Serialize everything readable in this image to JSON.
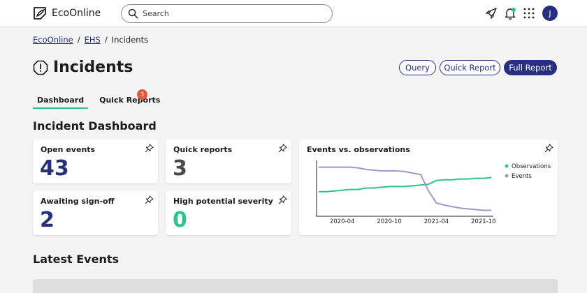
{
  "brand": {
    "name": "EcoOnline"
  },
  "search": {
    "placeholder": "Search"
  },
  "header": {
    "avatar_initial": "J"
  },
  "breadcrumb": {
    "items": [
      "EcoOnline",
      "EHS",
      "Incidents"
    ],
    "separator": "/"
  },
  "page": {
    "title": "Incidents"
  },
  "actions": {
    "query": "Query",
    "quick_report": "Quick Report",
    "full_report": "Full Report"
  },
  "tabs": [
    {
      "label": "Dashboard",
      "active": true
    },
    {
      "label": "Quick Reports",
      "badge": "3"
    }
  ],
  "dashboard": {
    "title": "Incident Dashboard",
    "cards": [
      {
        "title": "Open events",
        "value": "43",
        "color": "#26307f"
      },
      {
        "title": "Quick reports",
        "value": "3",
        "color": "#4a4a4a"
      },
      {
        "title": "Awaiting sign-off",
        "value": "2",
        "color": "#26307f"
      },
      {
        "title": "High potential severity",
        "value": "0",
        "color": "#2bc48a"
      }
    ]
  },
  "chart_data": {
    "type": "line",
    "title": "Events vs. observations",
    "xlabel": "",
    "ylabel": "",
    "x_ticks": [
      "2020-04",
      "2020-10",
      "2021-04",
      "2021-10"
    ],
    "x": [
      "2020-01",
      "2020-02",
      "2020-03",
      "2020-04",
      "2020-05",
      "2020-06",
      "2020-07",
      "2020-08",
      "2020-09",
      "2020-10",
      "2020-11",
      "2020-12",
      "2021-01",
      "2021-02",
      "2021-03",
      "2021-04",
      "2021-05",
      "2021-06",
      "2021-07",
      "2021-08",
      "2021-09",
      "2021-10",
      "2021-11"
    ],
    "series": [
      {
        "name": "Observations",
        "color": "#2bc48a",
        "values": [
          33,
          33,
          34,
          35,
          36,
          36,
          38,
          38,
          39,
          40,
          40,
          40,
          41,
          42,
          43,
          48,
          49,
          49,
          50,
          50,
          51,
          51,
          52
        ]
      },
      {
        "name": "Events",
        "color": "#9a9ac8",
        "values": [
          66,
          66,
          66,
          66,
          66,
          65,
          63,
          62,
          61,
          61,
          61,
          60,
          58,
          56,
          34,
          18,
          15,
          13,
          11,
          10,
          9,
          8,
          8
        ]
      }
    ],
    "ylim": [
      0,
      75
    ],
    "grid": false,
    "legend": "right"
  },
  "latest": {
    "title": "Latest Events"
  },
  "icons": {
    "brand": "brand-logo-icon",
    "search": "search-icon",
    "rocket": "rocket-icon",
    "bell": "bell-icon",
    "apps": "apps-grid-icon",
    "title": "warning-octagon-icon",
    "pin": "pin-icon"
  }
}
